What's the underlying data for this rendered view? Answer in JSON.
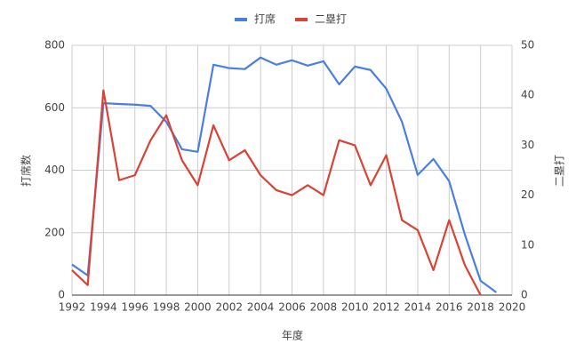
{
  "chart_data": {
    "type": "line",
    "x": [
      1992,
      1993,
      1994,
      1995,
      1996,
      1997,
      1998,
      1999,
      2000,
      2001,
      2002,
      2003,
      2004,
      2005,
      2006,
      2007,
      2008,
      2009,
      2010,
      2011,
      2012,
      2013,
      2014,
      2015,
      2016,
      2017,
      2018,
      2019
    ],
    "series": [
      {
        "name": "打席",
        "color": "#4a7fe0",
        "axis": "y",
        "values": [
          98,
          63,
          615,
          612,
          610,
          606,
          555,
          467,
          459,
          738,
          727,
          724,
          761,
          738,
          752,
          735,
          749,
          675,
          732,
          721,
          661,
          555,
          385,
          436,
          365,
          194,
          46,
          9
        ]
      },
      {
        "name": "二塁打",
        "color": "#d94235",
        "axis": "y2",
        "values": [
          5,
          2,
          41,
          23,
          24,
          31,
          36,
          27,
          22,
          34,
          27,
          29,
          24,
          21,
          20,
          22,
          20,
          31,
          30,
          22,
          28,
          15,
          13,
          5,
          15,
          6,
          0,
          null
        ]
      }
    ],
    "xlim": [
      1992,
      2020
    ],
    "xticks": [
      1992,
      1994,
      1996,
      1998,
      2000,
      2002,
      2004,
      2006,
      2008,
      2010,
      2012,
      2014,
      2016,
      2018,
      2020
    ],
    "ylim": [
      0,
      800
    ],
    "yticks": [
      0,
      200,
      400,
      600,
      800
    ],
    "y2lim": [
      0,
      50
    ],
    "y2ticks": [
      0,
      10,
      20,
      30,
      40,
      50
    ],
    "xlabel": "年度",
    "ylabel": "打席数",
    "y2label": "二塁打",
    "grid": true,
    "legend": "top"
  }
}
